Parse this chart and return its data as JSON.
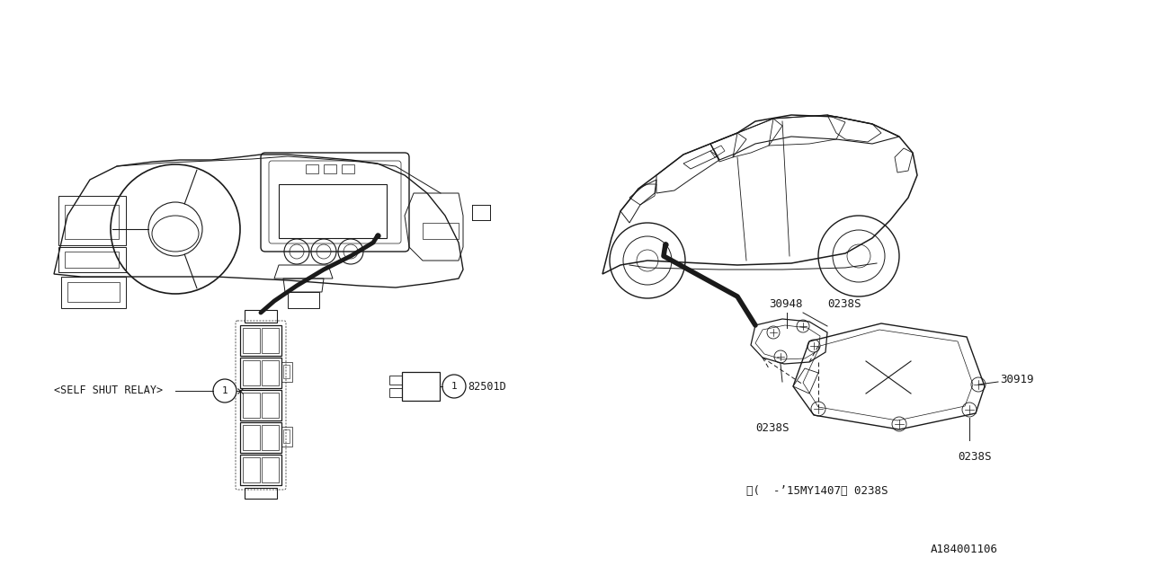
{
  "bg_color": "#ffffff",
  "line_color": "#1a1a1a",
  "figsize": [
    12.8,
    6.4
  ],
  "dpi": 100,
  "labels": {
    "self_shut_relay": "<SELF SHUT RELAY>",
    "part_82501D": "82501D",
    "part_30948": "30948",
    "part_0238S_top": "0238S",
    "part_30919": "30919",
    "part_0238S_mid": "0238S",
    "part_0238S_bot": "0238S",
    "note_text": "※(  -’15MY1407） 0238S",
    "diagram_code": "A184001106"
  },
  "font_size": 8.5
}
